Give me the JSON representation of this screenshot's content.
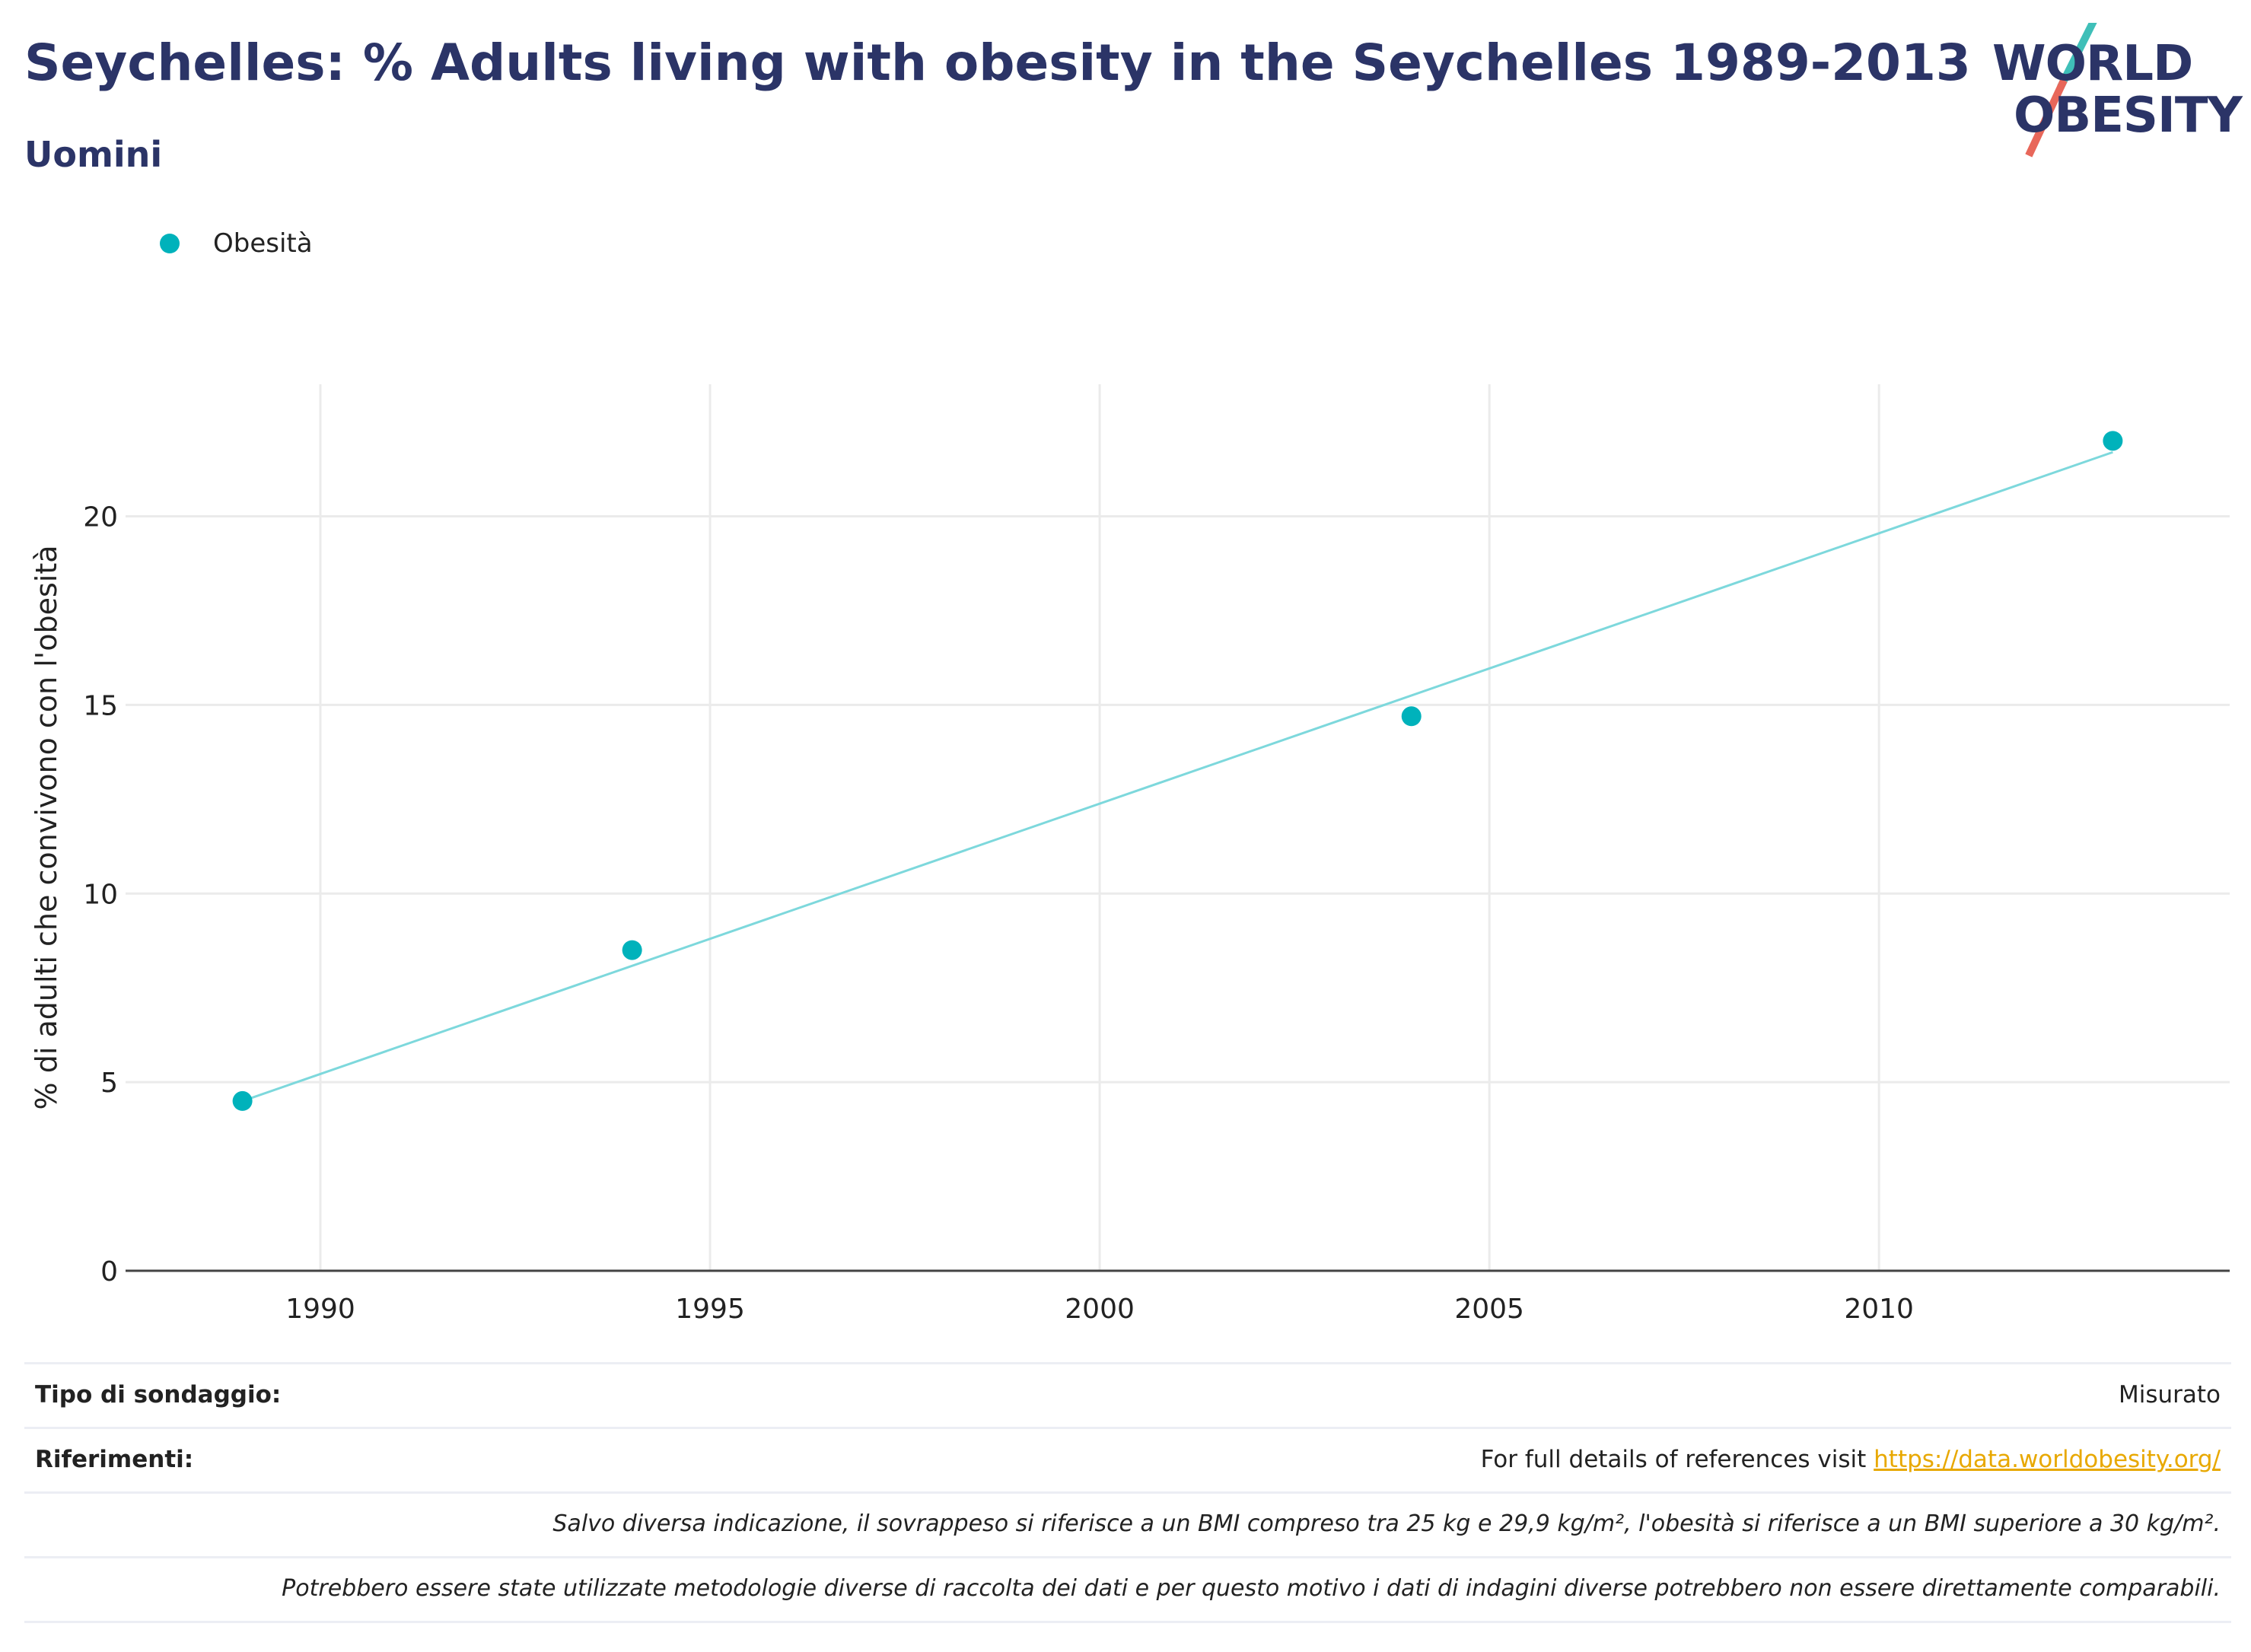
{
  "header": {
    "title": "Seychelles: % Adults living with obesity in the Seychelles 1989-2013",
    "subtitle": "Uomini"
  },
  "logo": {
    "line1": "WORLD",
    "line2": "OBESITY",
    "colors": {
      "text": "#2b3467",
      "slash_top": "#3fbfb8",
      "slash_bottom": "#e8675a"
    }
  },
  "legend": {
    "label": "Obesità",
    "color": "#00b2bb"
  },
  "chart_data": {
    "type": "scatter",
    "series": [
      {
        "name": "Obesità",
        "x": [
          1989,
          1994,
          2004,
          2013
        ],
        "y": [
          4.5,
          8.5,
          14.7,
          22.0
        ],
        "color": "#00b2bb"
      }
    ],
    "trendline": {
      "x": [
        1989,
        2013
      ],
      "y": [
        4.5,
        21.7
      ],
      "color": "#7dd8dc"
    },
    "xlabel": "",
    "ylabel": "% di adulti che convivono con l'obesità",
    "xticks": [
      1990,
      1995,
      2000,
      2005,
      2010
    ],
    "yticks": [
      0,
      5,
      10,
      15,
      20
    ],
    "xlim": [
      1987.5,
      2014.5
    ],
    "ylim": [
      0,
      23.5
    ],
    "grid": true,
    "legend_position": "top-left"
  },
  "footer": {
    "survey_label": "Tipo di sondaggio:",
    "survey_value": "Misurato",
    "refs_label": "Riferimenti:",
    "refs_text": "For full details of references visit ",
    "refs_link": "https://data.worldobesity.org/",
    "note1": "Salvo diversa indicazione, il sovrappeso si riferisce a un BMI compreso tra 25 kg e 29,9 kg/m², l'obesità si riferisce a un BMI superiore a 30 kg/m².",
    "note2": "Potrebbero essere state utilizzate metodologie diverse di raccolta dei dati e per questo motivo i dati di indagini diverse potrebbero non essere direttamente comparabili."
  }
}
